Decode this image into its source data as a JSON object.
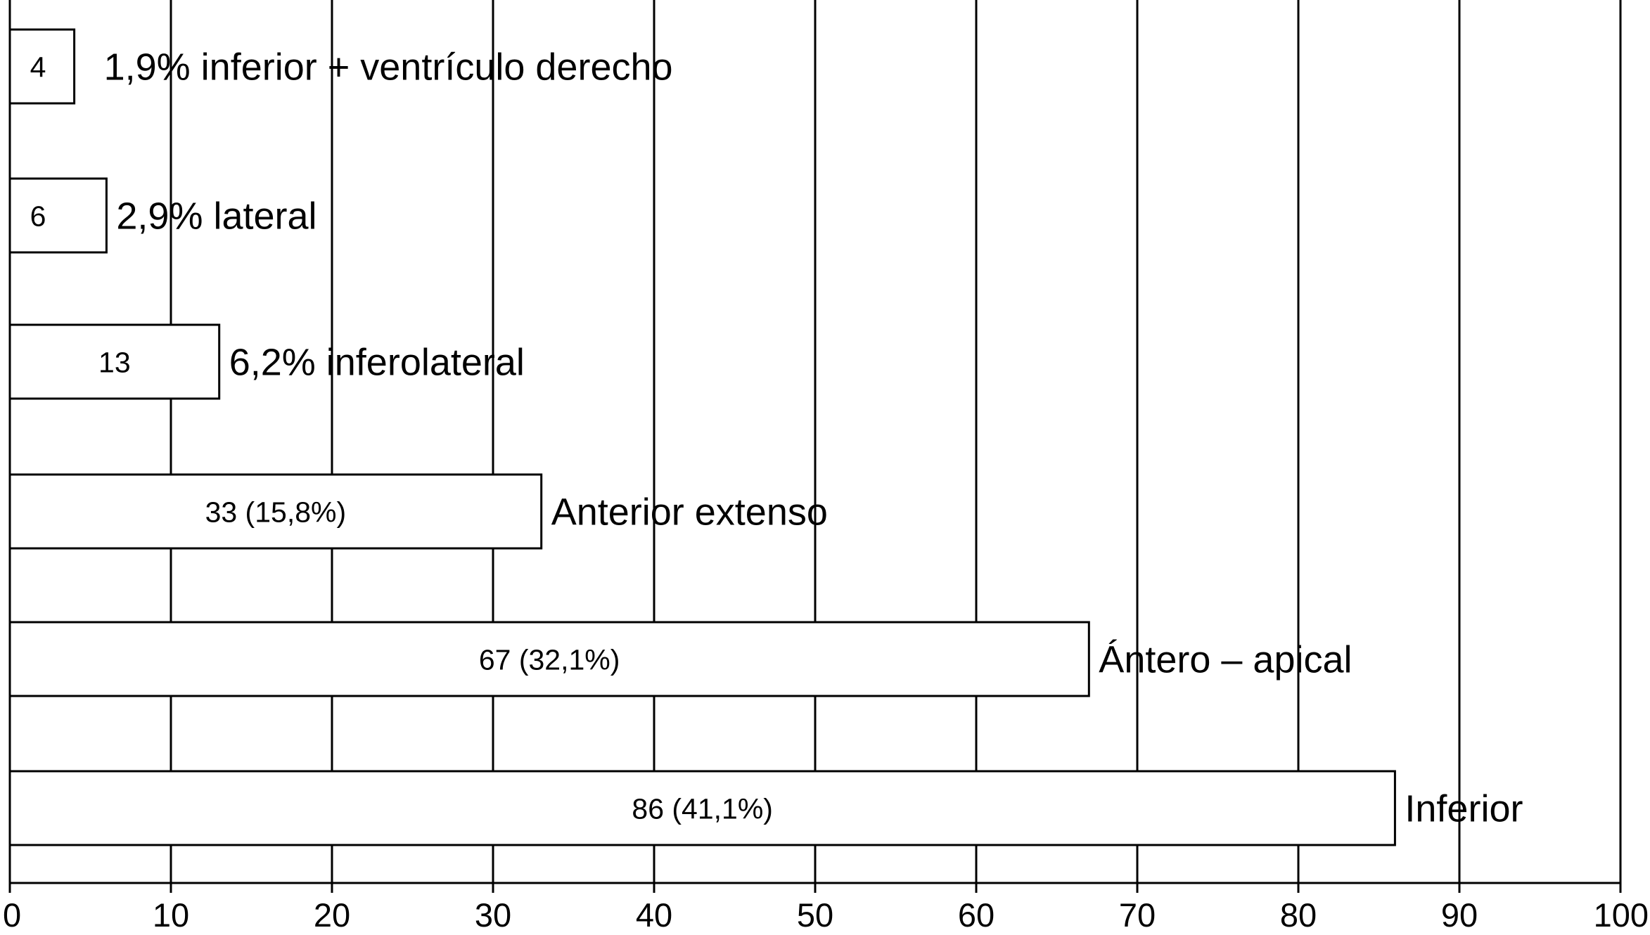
{
  "chart_data": {
    "type": "bar",
    "orientation": "horizontal",
    "categories": [
      "1,9% inferior + ventrículo derecho",
      "2,9% lateral",
      "6,2% inferolateral",
      "Anterior extenso",
      "Ántero – apical",
      "Inferior"
    ],
    "values": [
      4,
      6,
      13,
      33,
      67,
      86
    ],
    "bar_labels": [
      "4",
      "6",
      "13",
      "33 (15,8%)",
      "67 (32,1%)",
      "86 (41,1%)"
    ],
    "xlim": [
      0,
      100
    ],
    "x_ticks": [
      0,
      10,
      20,
      30,
      40,
      50,
      60,
      70,
      80,
      90,
      100
    ],
    "x_tick_labels": [
      "0",
      "10",
      "20",
      "30",
      "40",
      "50",
      "60",
      "70",
      "80",
      "90",
      "100"
    ],
    "grid": "vertical",
    "legend": "none",
    "colors": {
      "bar_fill": "#ffffff",
      "bar_stroke": "#000000",
      "grid": "#000000"
    }
  }
}
